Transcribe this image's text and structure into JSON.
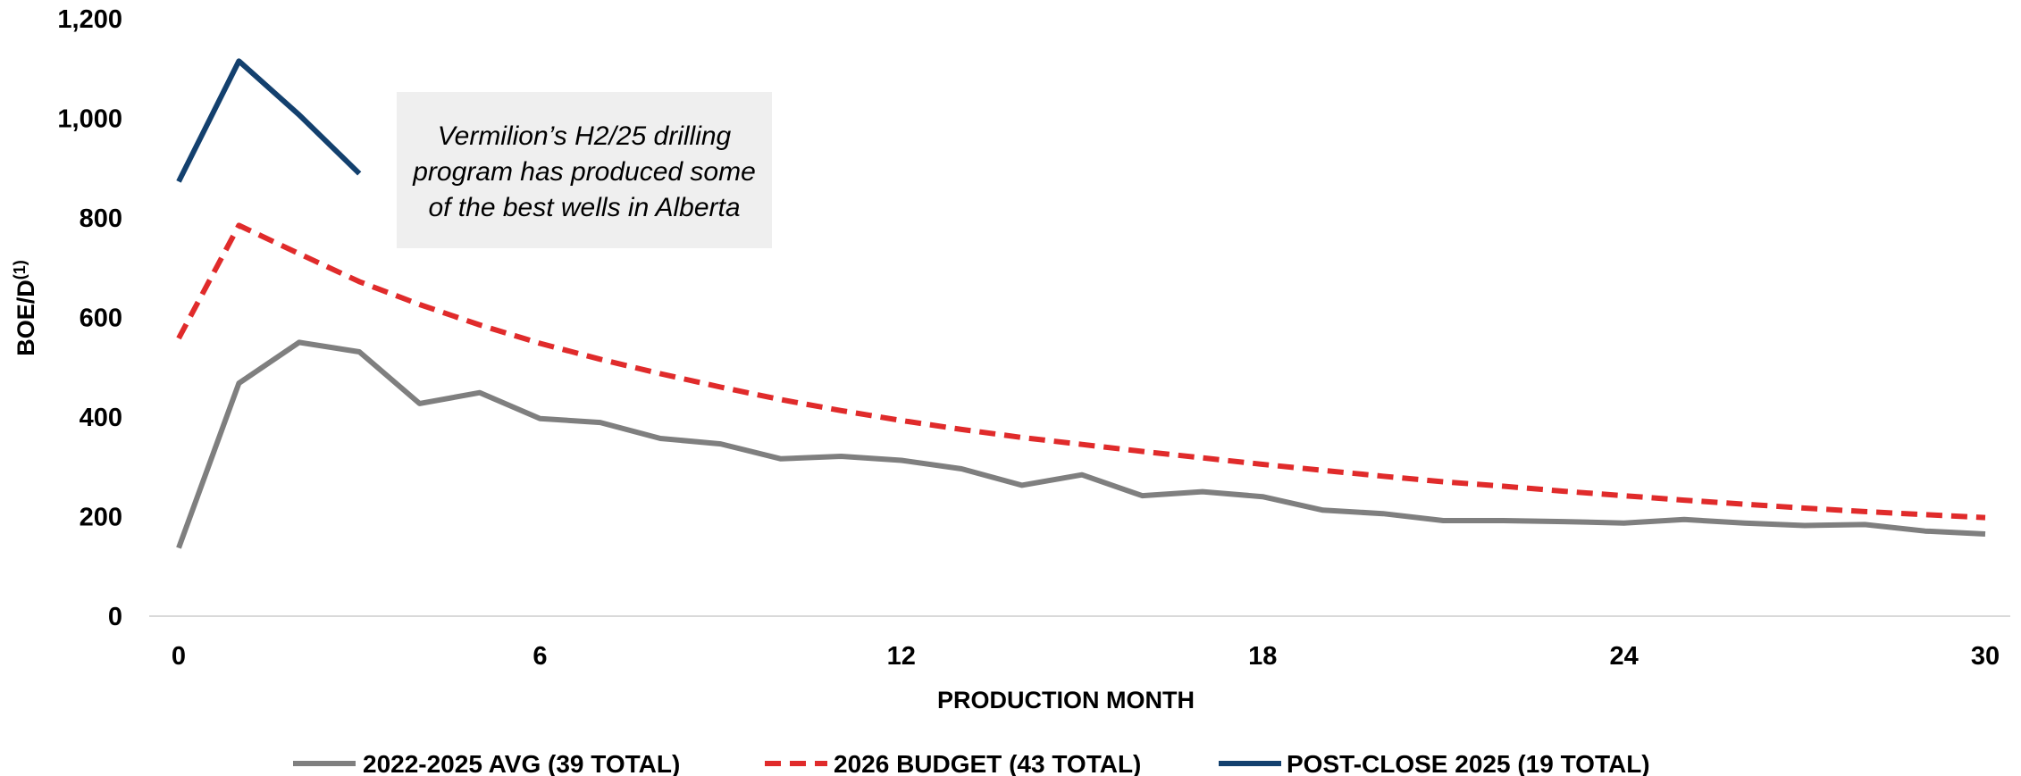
{
  "chart_data": {
    "type": "line",
    "xlabel": "PRODUCTION MONTH",
    "ylabel": "BOE/D",
    "ylabel_superscript": "(1)",
    "xlim": [
      0,
      30
    ],
    "ylim": [
      0,
      1200
    ],
    "x_ticks": [
      0,
      6,
      12,
      18,
      24,
      30
    ],
    "y_ticks": [
      0,
      200,
      400,
      600,
      800,
      1000,
      1200
    ],
    "y_tick_labels": [
      "0",
      "200",
      "400",
      "600",
      "800",
      "1,000",
      "1,200"
    ],
    "grid": false,
    "legend_position": "bottom",
    "annotation": {
      "lines": [
        "Vermilion’s H2/25 drilling",
        "program has produced some",
        "of the best wells in Alberta"
      ],
      "background": "#efefef"
    },
    "series": [
      {
        "name": "2022-2025 AVG (39 TOTAL)",
        "color": "#7f7f7f",
        "dash": "solid",
        "x": [
          0,
          1,
          2,
          3,
          4,
          5,
          6,
          7,
          8,
          9,
          10,
          11,
          12,
          13,
          14,
          15,
          16,
          17,
          18,
          19,
          20,
          21,
          22,
          23,
          24,
          25,
          26,
          27,
          28,
          29,
          30
        ],
        "values": [
          137,
          468,
          550,
          531,
          427,
          449,
          397,
          389,
          357,
          346,
          316,
          321,
          313,
          296,
          263,
          284,
          242,
          250,
          240,
          213,
          206,
          192,
          192,
          190,
          187,
          194,
          187,
          182,
          184,
          171,
          165
        ]
      },
      {
        "name": "2026 BUDGET (43 TOTAL)",
        "color": "#e02b2b",
        "dash": "dashed",
        "x": [
          0,
          1,
          2,
          3,
          4,
          5,
          6,
          7,
          8,
          9,
          10,
          11,
          12,
          13,
          14,
          15,
          16,
          17,
          18,
          19,
          20,
          21,
          22,
          23,
          24,
          25,
          26,
          27,
          28,
          29,
          30
        ],
        "values": [
          558,
          785,
          728,
          672,
          626,
          585,
          548,
          516,
          487,
          460,
          435,
          413,
          393,
          375,
          359,
          345,
          331,
          318,
          305,
          293,
          281,
          270,
          261,
          251,
          242,
          233,
          225,
          217,
          210,
          204,
          198
        ]
      },
      {
        "name": "POST-CLOSE 2025 (19 TOTAL)",
        "color": "#13406e",
        "dash": "solid",
        "x": [
          0,
          1,
          2,
          3
        ],
        "values": [
          873,
          1115,
          1007,
          889
        ]
      }
    ]
  }
}
